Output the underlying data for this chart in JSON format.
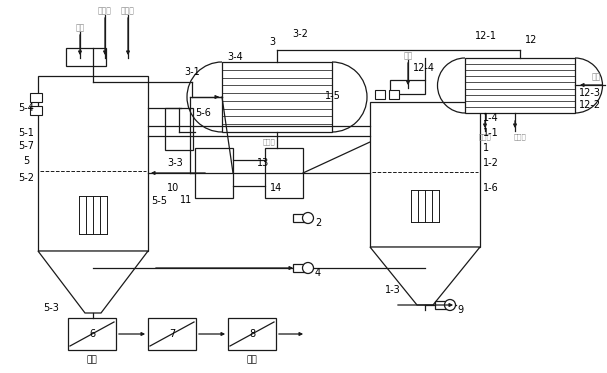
{
  "bg_color": "#ffffff",
  "lc": "#1a1a1a",
  "gc": "#888888",
  "labels": {
    "ke_ran_qi": "可燃气",
    "zhu_ran_qi": "助燃气",
    "fei_shui1": "废水",
    "fei_shui2": "废水",
    "kong_qi": "空气",
    "leng_ning_shui_r": "冷凝水",
    "bu_ning_qi": "不凝气",
    "leng_ning_shui_l": "冷凝水",
    "yan_ni1": "盐泥",
    "yan_ni2": "盐泥"
  },
  "nums": {
    "3": "3",
    "3-1": "3-1",
    "3-2": "3-2",
    "3-3": "3-3",
    "3-4": "3-4",
    "1": "1",
    "1-1": "1-1",
    "1-2": "1-2",
    "1-3": "1-3",
    "1-4": "1-4",
    "1-5": "1-5",
    "1-6": "1-6",
    "2": "2",
    "4": "4",
    "9": "9",
    "5": "5",
    "5-1": "5-1",
    "5-2": "5-2",
    "5-3": "5-3",
    "5-4": "5-4",
    "5-5": "5-5",
    "5-6": "5-6",
    "5-7": "5-7",
    "6": "6",
    "7": "7",
    "8": "8",
    "10": "10",
    "11": "11",
    "12": "12",
    "12-1": "12-1",
    "12-2": "12-2",
    "12-3": "12-3",
    "12-4": "12-4",
    "13": "13",
    "14": "14"
  }
}
